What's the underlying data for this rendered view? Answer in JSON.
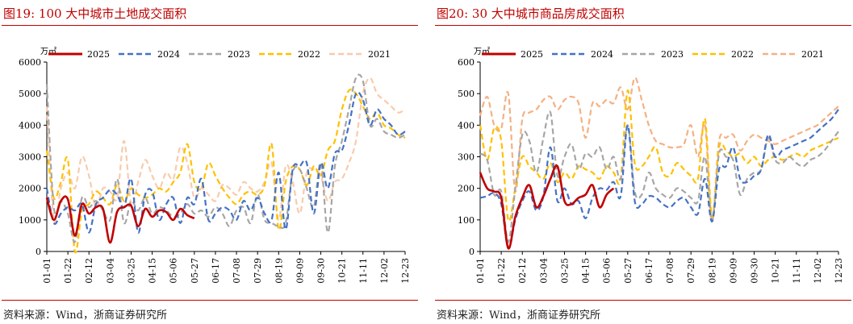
{
  "panels": [
    {
      "title": "图19:   100 大中城市土地成交面积",
      "source": "资料来源：Wind，浙商证券研究所",
      "chart_data": {
        "type": "line",
        "unit_label": "万㎡",
        "ylim": [
          0,
          6000
        ],
        "yticks": [
          0,
          1000,
          2000,
          3000,
          4000,
          5000,
          6000
        ],
        "x_count": 52,
        "xtick_labels": [
          "01-01",
          "01-22",
          "02-12",
          "03-04",
          "03-25",
          "04-15",
          "05-06",
          "05-27",
          "06-17",
          "07-08",
          "07-29",
          "08-19",
          "09-09",
          "09-30",
          "10-21",
          "11-11",
          "12-02",
          "12-23"
        ],
        "grid": false,
        "legend_position": "top",
        "series": [
          {
            "name": "2025",
            "color": "#c00000",
            "dash": "solid",
            "values": [
              1700,
              1000,
              1600,
              1650,
              500,
              1500,
              1200,
              1400,
              1350,
              280,
              1250,
              1400,
              1450,
              800,
              1350,
              1100,
              1300,
              1250,
              1000,
              1350,
              1150,
              1050
            ]
          },
          {
            "name": "2024",
            "color": "#4472c4",
            "dash": "dash",
            "values": [
              2000,
              900,
              1200,
              1400,
              1300,
              1500,
              600,
              1500,
              1700,
              1950,
              1800,
              1400,
              2300,
              600,
              1800,
              1900,
              1000,
              1500,
              1700,
              900,
              1700,
              1500,
              2300,
              1000,
              1200,
              1400,
              1300,
              1000,
              1600,
              1300,
              1700,
              1200,
              1000,
              2500,
              700,
              2600,
              2700,
              2800,
              1200,
              2800,
              2000,
              3100,
              3200,
              4000,
              5000,
              4800,
              4000,
              4500,
              4200,
              4000,
              3700,
              3800
            ]
          },
          {
            "name": "2023",
            "color": "#a6a6a6",
            "dash": "dash",
            "values": [
              5300,
              1400,
              1600,
              1200,
              300,
              1700,
              1400,
              1600,
              1300,
              1000,
              2300,
              900,
              1600,
              1300,
              1700,
              1200,
              1400,
              1300,
              1100,
              1200,
              1500,
              1200,
              1300,
              1100,
              1400,
              1200,
              800,
              1300,
              1400,
              900,
              1800,
              1000,
              900,
              800,
              900,
              2500,
              2600,
              2000,
              1400,
              2800,
              600,
              2700,
              3500,
              4500,
              5500,
              5400,
              4000,
              4200,
              3800,
              3700,
              3600,
              3700
            ]
          },
          {
            "name": "2022",
            "color": "#ffc000",
            "dash": "dash",
            "values": [
              3200,
              1700,
              2200,
              2900,
              0,
              1300,
              1500,
              1900,
              1700,
              1500,
              2100,
              1600,
              2000,
              1800,
              1700,
              1800,
              2000,
              1900,
              2200,
              2500,
              3400,
              2200,
              2000,
              2800,
              2400,
              2000,
              1700,
              1500,
              1800,
              1900,
              1800,
              2100,
              3400,
              700,
              2200,
              2700,
              2600,
              2100,
              2700,
              2400,
              3200,
              3500,
              4500,
              5100,
              5000,
              4600,
              4200,
              4400,
              4000,
              3900,
              3700,
              3600
            ]
          },
          {
            "name": "2021",
            "color": "#f8cbad",
            "dash": "dash",
            "values": [
              4600,
              1000,
              2000,
              2500,
              2000,
              3000,
              2400,
              1400,
              2000,
              1900,
              1700,
              3500,
              1500,
              2200,
              2900,
              2400,
              2000,
              2500,
              2300,
              3300,
              2800,
              1700,
              2000,
              1800,
              1600,
              2100,
              2000,
              1800,
              2200,
              2000,
              1900,
              2200,
              2800,
              1000,
              2700,
              2200,
              1200,
              2500,
              2600,
              2400,
              1600,
              2200,
              2300,
              2800,
              3500,
              5000,
              5500,
              5000,
              4800,
              4600,
              4400,
              4500
            ]
          }
        ]
      }
    },
    {
      "title": "图20:   30 大中城市商品房成交面积",
      "source": "资料来源：Wind，浙商证券研究所",
      "chart_data": {
        "type": "line",
        "unit_label": "万㎡",
        "ylim": [
          0,
          600
        ],
        "yticks": [
          0,
          100,
          200,
          300,
          400,
          500,
          600
        ],
        "x_count": 52,
        "xtick_labels": [
          "01-01",
          "01-22",
          "02-12",
          "03-04",
          "03-25",
          "04-15",
          "05-06",
          "05-27",
          "06-17",
          "07-08",
          "07-29",
          "08-19",
          "09-09",
          "09-30",
          "10-21",
          "11-11",
          "12-02",
          "12-23"
        ],
        "grid": false,
        "legend_position": "top",
        "series": [
          {
            "name": "2025",
            "color": "#c00000",
            "dash": "solid",
            "values": [
              250,
              200,
              190,
              170,
              10,
              110,
              170,
              210,
              140,
              175,
              230,
              270,
              160,
              150,
              170,
              180,
              210,
              140,
              180,
              200
            ]
          },
          {
            "name": "2024",
            "color": "#4472c4",
            "dash": "dash",
            "values": [
              170,
              175,
              185,
              150,
              10,
              100,
              160,
              190,
              130,
              175,
              330,
              160,
              200,
              150,
              160,
              105,
              170,
              200,
              195,
              220,
              175,
              400,
              160,
              150,
              175,
              170,
              150,
              140,
              160,
              170,
              140,
              120,
              230,
              95,
              260,
              270,
              330,
              230,
              220,
              240,
              260,
              370,
              300,
              320,
              330,
              340,
              350,
              360,
              380,
              400,
              420,
              450
            ]
          },
          {
            "name": "2023",
            "color": "#a6a6a6",
            "dash": "dash",
            "values": [
              310,
              290,
              180,
              190,
              30,
              200,
              370,
              350,
              250,
              360,
              440,
              240,
              300,
              340,
              260,
              310,
              300,
              330,
              260,
              300,
              230,
              400,
              190,
              180,
              250,
              200,
              180,
              170,
              200,
              190,
              170,
              160,
              300,
              95,
              310,
              300,
              290,
              180,
              230,
              250,
              260,
              360,
              290,
              280,
              300,
              280,
              270,
              290,
              300,
              320,
              350,
              380
            ]
          },
          {
            "name": "2022",
            "color": "#ffc000",
            "dash": "dash",
            "values": [
              400,
              290,
              390,
              350,
              100,
              200,
              300,
              270,
              250,
              230,
              280,
              220,
              250,
              230,
              270,
              260,
              250,
              230,
              270,
              250,
              230,
              510,
              280,
              270,
              300,
              330,
              250,
              240,
              280,
              260,
              240,
              230,
              420,
              110,
              330,
              320,
              300,
              310,
              280,
              300,
              270,
              290,
              300,
              290,
              300,
              310,
              300,
              320,
              330,
              340,
              350,
              360
            ]
          },
          {
            "name": "2021",
            "color": "#f4b183",
            "dash": "dash",
            "values": [
              430,
              490,
              400,
              390,
              500,
              190,
              420,
              440,
              450,
              480,
              490,
              450,
              480,
              490,
              470,
              360,
              470,
              460,
              480,
              470,
              520,
              450,
              550,
              480,
              400,
              350,
              340,
              330,
              330,
              340,
              400,
              300,
              400,
              100,
              350,
              360,
              370,
              320,
              350,
              370,
              360,
              350,
              340,
              350,
              360,
              370,
              380,
              390,
              400,
              420,
              440,
              460
            ]
          }
        ]
      }
    }
  ]
}
